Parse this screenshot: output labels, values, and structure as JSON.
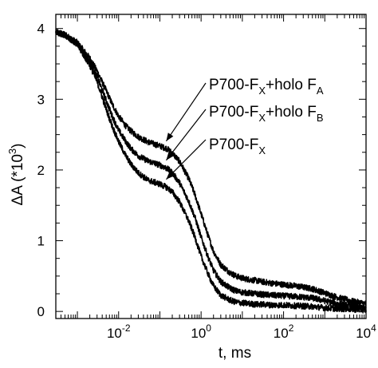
{
  "chart_data": {
    "type": "line",
    "xscale": "log",
    "xlim": [
      0.0003,
      10000
    ],
    "ylim": [
      -0.1,
      4.2
    ],
    "xlabel": "t, ms",
    "ylabel_main": "ΔA (*10",
    "ylabel_sup": "3",
    "ylabel_close": ")",
    "yticks": [
      {
        "value": 0,
        "label": "0"
      },
      {
        "value": 1,
        "label": "1"
      },
      {
        "value": 2,
        "label": "2"
      },
      {
        "value": 3,
        "label": "3"
      },
      {
        "value": 4,
        "label": "4"
      }
    ],
    "xticks": [
      {
        "value": 0.01,
        "base": "10",
        "exp": "-2"
      },
      {
        "value": 1,
        "base": "10",
        "exp": "0"
      },
      {
        "value": 100,
        "base": "10",
        "exp": "2"
      },
      {
        "value": 10000,
        "base": "10",
        "exp": "4"
      }
    ],
    "series": [
      {
        "key": "holoFA",
        "x": [
          0.0003,
          0.0005,
          0.001,
          0.002,
          0.003,
          0.005,
          0.007,
          0.01,
          0.015,
          0.02,
          0.03,
          0.05,
          0.07,
          0.1,
          0.15,
          0.2,
          0.3,
          0.5,
          0.7,
          1,
          1.5,
          2,
          3,
          5,
          7,
          10,
          15,
          20,
          30,
          50,
          100,
          200,
          500,
          1000,
          2000,
          5000,
          10000
        ],
        "y": [
          3.95,
          3.91,
          3.8,
          3.58,
          3.4,
          3.12,
          2.93,
          2.76,
          2.62,
          2.55,
          2.47,
          2.4,
          2.37,
          2.34,
          2.3,
          2.24,
          2.12,
          1.88,
          1.66,
          1.38,
          1.06,
          0.85,
          0.66,
          0.55,
          0.5,
          0.47,
          0.45,
          0.44,
          0.42,
          0.4,
          0.38,
          0.36,
          0.32,
          0.26,
          0.2,
          0.14,
          0.11
        ]
      },
      {
        "key": "holoFB",
        "x": [
          0.0003,
          0.0005,
          0.001,
          0.002,
          0.003,
          0.005,
          0.007,
          0.01,
          0.015,
          0.02,
          0.03,
          0.05,
          0.07,
          0.1,
          0.15,
          0.2,
          0.3,
          0.5,
          0.7,
          1,
          1.5,
          2,
          3,
          5,
          7,
          10,
          15,
          20,
          30,
          50,
          100,
          200,
          500,
          1000,
          2000,
          5000,
          10000
        ],
        "y": [
          3.95,
          3.91,
          3.78,
          3.52,
          3.32,
          2.98,
          2.76,
          2.56,
          2.4,
          2.3,
          2.2,
          2.13,
          2.1,
          2.07,
          2.02,
          1.96,
          1.82,
          1.56,
          1.34,
          1.05,
          0.76,
          0.58,
          0.42,
          0.33,
          0.29,
          0.27,
          0.26,
          0.25,
          0.24,
          0.23,
          0.22,
          0.21,
          0.19,
          0.15,
          0.11,
          0.07,
          0.05
        ]
      },
      {
        "key": "PFX",
        "x": [
          0.0003,
          0.0005,
          0.001,
          0.002,
          0.003,
          0.005,
          0.007,
          0.01,
          0.015,
          0.02,
          0.03,
          0.05,
          0.07,
          0.1,
          0.15,
          0.2,
          0.3,
          0.5,
          0.7,
          1,
          1.5,
          2,
          3,
          5,
          7,
          10,
          15,
          20,
          30,
          50,
          100,
          200,
          500,
          1000,
          2000,
          5000,
          10000
        ],
        "y": [
          3.95,
          3.91,
          3.77,
          3.48,
          3.25,
          2.86,
          2.62,
          2.4,
          2.2,
          2.08,
          1.96,
          1.86,
          1.83,
          1.8,
          1.75,
          1.69,
          1.55,
          1.28,
          1.06,
          0.78,
          0.52,
          0.36,
          0.23,
          0.16,
          0.13,
          0.12,
          0.11,
          0.1,
          0.1,
          0.09,
          0.09,
          0.08,
          0.07,
          0.05,
          0.04,
          0.03,
          0.02
        ]
      }
    ],
    "annotations": [
      {
        "key": "holoFA",
        "parts": [
          {
            "t": "P700-F",
            "s": "n"
          },
          {
            "t": "X",
            "s": "sub"
          },
          {
            "t": "+holo F",
            "s": "n"
          },
          {
            "t": "A",
            "s": "sub"
          }
        ],
        "target": [
          0.1,
          2.34
        ]
      },
      {
        "key": "holoFB",
        "parts": [
          {
            "t": "P700-F",
            "s": "n"
          },
          {
            "t": "X",
            "s": "sub"
          },
          {
            "t": "+holo F",
            "s": "n"
          },
          {
            "t": "B",
            "s": "sub"
          }
        ],
        "target": [
          0.1,
          2.07
        ]
      },
      {
        "key": "PFX",
        "parts": [
          {
            "t": "P700-F",
            "s": "n"
          },
          {
            "t": "X",
            "s": "sub"
          }
        ],
        "target": [
          0.1,
          1.8
        ]
      }
    ]
  }
}
